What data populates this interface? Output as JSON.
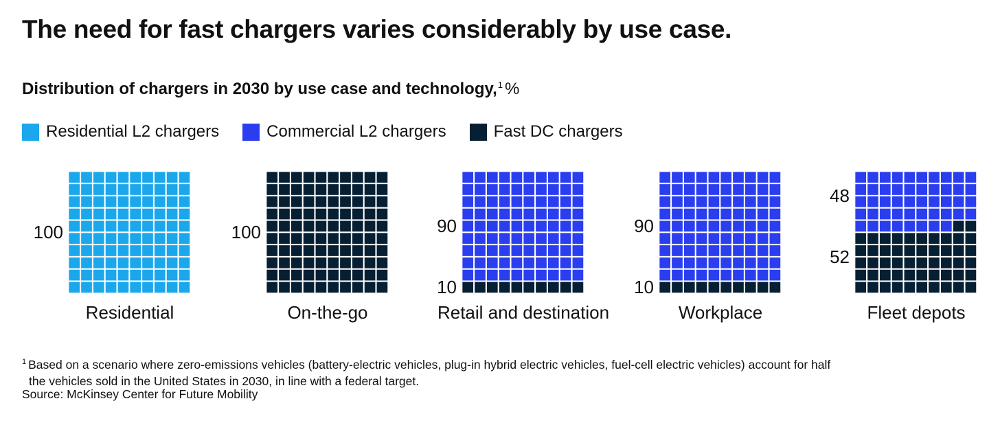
{
  "title": "The need for fast chargers varies considerably by use case.",
  "subtitle": "Distribution of chargers in 2030 by use case and technology,",
  "subtitle_footnote_mark": "1",
  "subtitle_unit": "%",
  "legend": [
    {
      "label": "Residential L2 chargers",
      "color": "#1aa7ec"
    },
    {
      "label": "Commercial L2 chargers",
      "color": "#2a3ef0"
    },
    {
      "label": "Fast DC chargers",
      "color": "#061f33"
    }
  ],
  "chart_data": {
    "type": "waffle",
    "grid": {
      "rows": 10,
      "cols": 10
    },
    "series_names": [
      "Residential L2 chargers",
      "Commercial L2 chargers",
      "Fast DC chargers"
    ],
    "categories": [
      {
        "name": "Residential",
        "values": {
          "Residential L2 chargers": 100,
          "Commercial L2 chargers": 0,
          "Fast DC chargers": 0
        },
        "labels": [
          "100"
        ]
      },
      {
        "name": "On-the-go",
        "values": {
          "Residential L2 chargers": 0,
          "Commercial L2 chargers": 0,
          "Fast DC chargers": 100
        },
        "labels": [
          "100"
        ]
      },
      {
        "name": "Retail and destination",
        "values": {
          "Residential L2 chargers": 0,
          "Commercial L2 chargers": 90,
          "Fast DC chargers": 10
        },
        "labels": [
          "90",
          "10"
        ]
      },
      {
        "name": "Workplace",
        "values": {
          "Residential L2 chargers": 0,
          "Commercial L2 chargers": 90,
          "Fast DC chargers": 10
        },
        "labels": [
          "90",
          "10"
        ]
      },
      {
        "name": "Fleet depots",
        "values": {
          "Residential L2 chargers": 0,
          "Commercial L2 chargers": 48,
          "Fast DC chargers": 52
        },
        "labels": [
          "48",
          "52"
        ]
      }
    ]
  },
  "footnote_mark": "1",
  "footnote_line1": "Based on a scenario where zero-emissions vehicles (battery-electric vehicles, plug-in hybrid electric vehicles, fuel-cell electric vehicles) account for half",
  "footnote_line2": "the vehicles sold in the United States in 2030, in line with a federal target.",
  "source": "Source: McKinsey Center for Future Mobility"
}
